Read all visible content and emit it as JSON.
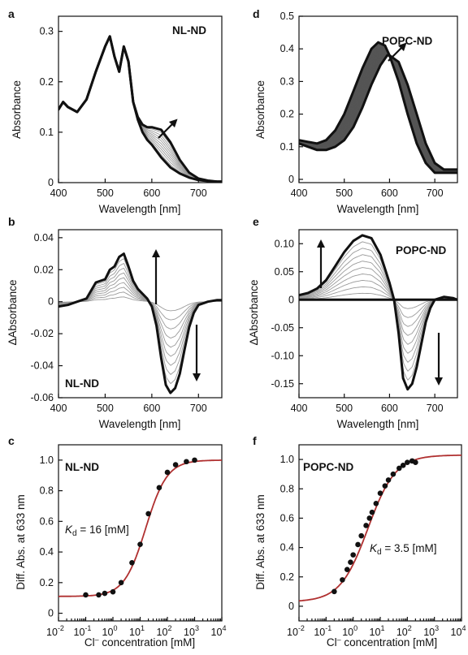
{
  "chart_data": [
    {
      "id": "a",
      "type": "line",
      "panel_letter": "a",
      "panel_label": "NL-ND",
      "xlabel": "Wavelength [nm]",
      "ylabel": "Absorbance",
      "xlim": [
        400,
        750
      ],
      "ylim": [
        0,
        0.33
      ],
      "xticks": [
        400,
        500,
        600,
        700
      ],
      "yticks": [
        0,
        0.1,
        0.2,
        0.3
      ],
      "ytick_labels": [
        "0",
        "0.1",
        "0.2",
        "0.3"
      ],
      "series": [
        {
          "style": "bold",
          "x": [
            390,
            400,
            410,
            420,
            440,
            460,
            480,
            500,
            510,
            520,
            530,
            540,
            550,
            560,
            570,
            580,
            590,
            600,
            620,
            640,
            660,
            680,
            700,
            720,
            740,
            750
          ],
          "y": [
            0.14,
            0.145,
            0.16,
            0.15,
            0.14,
            0.165,
            0.22,
            0.27,
            0.29,
            0.25,
            0.22,
            0.27,
            0.24,
            0.16,
            0.125,
            0.1,
            0.085,
            0.075,
            0.05,
            0.03,
            0.018,
            0.01,
            0.005,
            0.003,
            0.002,
            0.002
          ]
        },
        {
          "style": "bold",
          "x": [
            390,
            400,
            410,
            420,
            440,
            460,
            480,
            500,
            510,
            520,
            530,
            540,
            550,
            560,
            570,
            580,
            590,
            600,
            620,
            640,
            660,
            680,
            700,
            720,
            740,
            750
          ],
          "y": [
            0.14,
            0.145,
            0.16,
            0.15,
            0.14,
            0.165,
            0.22,
            0.27,
            0.29,
            0.25,
            0.22,
            0.27,
            0.24,
            0.16,
            0.13,
            0.115,
            0.11,
            0.11,
            0.105,
            0.08,
            0.045,
            0.02,
            0.008,
            0.004,
            0.002,
            0.002
          ]
        }
      ]
    },
    {
      "id": "d",
      "type": "line",
      "panel_letter": "d",
      "panel_label": "POPC-ND",
      "xlabel": "Wavelength [nm]",
      "ylabel": "Absorbance",
      "xlim": [
        400,
        750
      ],
      "ylim": [
        -0.01,
        0.5
      ],
      "xticks": [
        400,
        500,
        600,
        700
      ],
      "yticks": [
        0,
        0.1,
        0.2,
        0.3,
        0.4,
        0.5
      ],
      "ytick_labels": [
        "0",
        "0.1",
        "0.2",
        "0.3",
        "0.4",
        "0.5"
      ],
      "series": [
        {
          "style": "bold",
          "x": [
            400,
            420,
            440,
            460,
            480,
            500,
            520,
            540,
            560,
            575,
            590,
            600,
            620,
            640,
            660,
            680,
            700,
            720,
            740,
            750
          ],
          "y": [
            0.12,
            0.115,
            0.11,
            0.12,
            0.15,
            0.2,
            0.27,
            0.34,
            0.4,
            0.42,
            0.41,
            0.38,
            0.3,
            0.2,
            0.11,
            0.05,
            0.02,
            0.02,
            0.02,
            0.02
          ]
        },
        {
          "style": "bold",
          "x": [
            400,
            420,
            440,
            460,
            480,
            500,
            520,
            540,
            560,
            580,
            595,
            600,
            620,
            640,
            660,
            680,
            700,
            720,
            740,
            750
          ],
          "y": [
            0.11,
            0.1,
            0.09,
            0.09,
            0.1,
            0.12,
            0.16,
            0.22,
            0.29,
            0.35,
            0.38,
            0.38,
            0.36,
            0.29,
            0.2,
            0.11,
            0.05,
            0.03,
            0.03,
            0.03
          ]
        }
      ],
      "fill_between": true
    },
    {
      "id": "b",
      "type": "line",
      "panel_letter": "b",
      "panel_label": "NL-ND",
      "xlabel": "Wavelength [nm]",
      "ylabel": "ΔAbsorbance",
      "xlim": [
        400,
        750
      ],
      "ylim": [
        -0.06,
        0.045
      ],
      "xticks": [
        400,
        500,
        600,
        700
      ],
      "yticks": [
        -0.06,
        -0.04,
        -0.02,
        0,
        0.02,
        0.04
      ],
      "ytick_labels": [
        "-0.06",
        "-0.04",
        "-0.02",
        "0",
        "0.02",
        "0.04"
      ],
      "series": [
        {
          "style": "bold",
          "x": [
            390,
            400,
            420,
            440,
            460,
            480,
            500,
            510,
            520,
            530,
            540,
            550,
            560,
            570,
            580,
            590,
            600,
            610,
            620,
            630,
            640,
            650,
            660,
            670,
            680,
            690,
            700,
            720,
            740,
            750
          ],
          "y": [
            -0.004,
            -0.003,
            -0.002,
            0.0,
            0.002,
            0.012,
            0.014,
            0.02,
            0.022,
            0.028,
            0.03,
            0.022,
            0.013,
            0.008,
            0.005,
            0.002,
            -0.003,
            -0.015,
            -0.035,
            -0.052,
            -0.057,
            -0.054,
            -0.045,
            -0.03,
            -0.016,
            -0.007,
            -0.002,
            0.0,
            0.001,
            0.001
          ]
        }
      ]
    },
    {
      "id": "e",
      "type": "line",
      "panel_letter": "e",
      "panel_label": "POPC-ND",
      "xlabel": "Wavelength [nm]",
      "ylabel": "ΔAbsorbance",
      "xlim": [
        400,
        750
      ],
      "ylim": [
        -0.175,
        0.125
      ],
      "xticks": [
        400,
        500,
        600,
        700
      ],
      "yticks": [
        -0.15,
        -0.1,
        -0.05,
        0,
        0.05,
        0.1
      ],
      "ytick_labels": [
        "-0.15",
        "-0.10",
        "-0.05",
        "0",
        "0.05",
        "0.10"
      ],
      "series": [
        {
          "style": "bold",
          "x": [
            400,
            420,
            440,
            460,
            480,
            500,
            520,
            540,
            560,
            580,
            600,
            610,
            620,
            630,
            640,
            650,
            660,
            670,
            680,
            690,
            700,
            720,
            740,
            750
          ],
          "y": [
            0.008,
            0.012,
            0.02,
            0.035,
            0.06,
            0.085,
            0.105,
            0.115,
            0.11,
            0.08,
            0.03,
            0.0,
            -0.06,
            -0.14,
            -0.16,
            -0.15,
            -0.12,
            -0.08,
            -0.04,
            -0.015,
            0.0,
            0.005,
            0.003,
            0.0
          ]
        },
        {
          "style": "bold",
          "x": [
            400,
            750
          ],
          "y": [
            0,
            0
          ]
        }
      ]
    },
    {
      "id": "c",
      "type": "scatter",
      "panel_letter": "c",
      "panel_label": "NL-ND",
      "annotation_symbol": "K",
      "annotation_subscript": "d",
      "annotation_value": " = 16 [mM]",
      "xlabel_prefix": "Cl",
      "xlabel_sup": "–",
      "xlabel_suffix": " concentration [mM]",
      "ylabel": "Diff. Abs. at 633 nm",
      "xscale": "log",
      "xlim": [
        0.01,
        10000
      ],
      "ylim": [
        -0.05,
        1.1
      ],
      "xtick_bases": [
        "10",
        "10",
        "10",
        "10",
        "10",
        "10",
        "10"
      ],
      "xtick_exps": [
        "-2",
        "-1",
        "0",
        "1",
        "2",
        "3",
        "4"
      ],
      "yticks": [
        0,
        0.2,
        0.4,
        0.6,
        0.8,
        1.0
      ],
      "ytick_labels": [
        "0",
        "0.2",
        "0.4",
        "0.6",
        "0.8",
        "1.0"
      ],
      "points": {
        "x": [
          0.1,
          0.3,
          0.5,
          1,
          2,
          5,
          10,
          20,
          50,
          100,
          200,
          500,
          1000
        ],
        "y": [
          0.12,
          0.12,
          0.13,
          0.14,
          0.2,
          0.33,
          0.45,
          0.65,
          0.82,
          0.92,
          0.97,
          0.99,
          1.0
        ]
      },
      "fit": {
        "Kd": 16,
        "n": 1.1,
        "min": 0.11,
        "max": 1.0
      }
    },
    {
      "id": "f",
      "type": "scatter",
      "panel_letter": "f",
      "panel_label": "POPC-ND",
      "annotation_symbol": "K",
      "annotation_subscript": "d",
      "annotation_value": " = 3.5 [mM]",
      "xlabel_prefix": "Cl",
      "xlabel_sup": "–",
      "xlabel_suffix": " concentration [mM]",
      "ylabel": "Diff. Abs. at 633 nm",
      "xscale": "log",
      "xlim": [
        0.01,
        10000
      ],
      "ylim": [
        -0.1,
        1.1
      ],
      "xtick_bases": [
        "10",
        "10",
        "10",
        "10",
        "10",
        "10",
        "10"
      ],
      "xtick_exps": [
        "-2",
        "-1",
        "0",
        "1",
        "2",
        "3",
        "4"
      ],
      "yticks": [
        0,
        0.2,
        0.4,
        0.6,
        0.8,
        1.0
      ],
      "ytick_labels": [
        "0",
        "0.2",
        "0.4",
        "0.6",
        "0.8",
        "1.0"
      ],
      "points": {
        "x": [
          0.2,
          0.4,
          0.6,
          0.8,
          1,
          1.5,
          2,
          3,
          4,
          5,
          7,
          10,
          15,
          20,
          30,
          50,
          70,
          100,
          150,
          200
        ],
        "y": [
          0.1,
          0.18,
          0.25,
          0.3,
          0.35,
          0.42,
          0.48,
          0.55,
          0.6,
          0.64,
          0.7,
          0.77,
          0.82,
          0.86,
          0.9,
          0.94,
          0.96,
          0.98,
          0.99,
          0.98
        ]
      },
      "fit": {
        "Kd": 3.5,
        "n": 0.85,
        "min": 0.03,
        "max": 1.03
      }
    }
  ]
}
